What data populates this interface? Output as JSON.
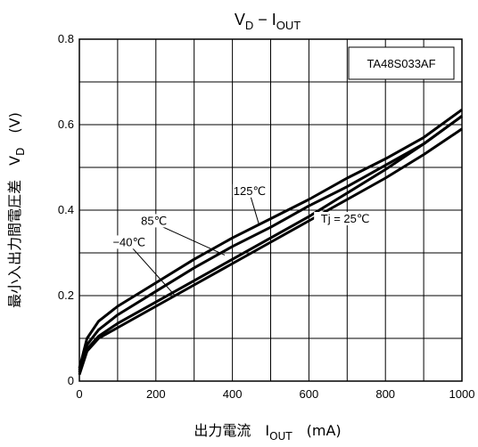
{
  "chart_data": {
    "type": "line",
    "title": "V_D − I_OUT",
    "title_main": "V",
    "title_sub": "D",
    "title_sep": " − I",
    "title_sub2": "OUT",
    "device_label": "TA48S033AF",
    "xlabel_main": "出力電流　I",
    "xlabel_sub": "OUT",
    "xlabel_unit": "(mA)",
    "ylabel_main": "最小入出力間電圧差　V",
    "ylabel_sub": "D",
    "ylabel_unit": "(V)",
    "xlim": [
      0,
      1000
    ],
    "ylim": [
      0,
      0.8
    ],
    "xticks": [
      "0",
      "200",
      "400",
      "600",
      "800",
      "1000"
    ],
    "yticks": [
      "0",
      "0.2",
      "0.4",
      "0.6",
      "0.8"
    ],
    "grid": true,
    "series": [
      {
        "name": "125℃",
        "x": [
          0,
          20,
          50,
          100,
          200,
          300,
          400,
          500,
          600,
          700,
          800,
          900,
          1000
        ],
        "y": [
          0.03,
          0.1,
          0.14,
          0.175,
          0.23,
          0.285,
          0.335,
          0.38,
          0.425,
          0.475,
          0.52,
          0.57,
          0.635
        ]
      },
      {
        "name": "85℃",
        "x": [
          0,
          20,
          50,
          100,
          200,
          300,
          400,
          500,
          600,
          700,
          800,
          900,
          1000
        ],
        "y": [
          0.025,
          0.085,
          0.12,
          0.155,
          0.21,
          0.265,
          0.315,
          0.36,
          0.41,
          0.455,
          0.505,
          0.555,
          0.62
        ]
      },
      {
        "name": "Tj = 25℃",
        "x": [
          0,
          20,
          50,
          100,
          200,
          300,
          400,
          500,
          600,
          700,
          800,
          900,
          1000
        ],
        "y": [
          0.02,
          0.075,
          0.105,
          0.135,
          0.185,
          0.235,
          0.285,
          0.335,
          0.385,
          0.44,
          0.495,
          0.555,
          0.62
        ]
      },
      {
        "name": "−40℃",
        "x": [
          0,
          20,
          50,
          100,
          200,
          300,
          400,
          500,
          600,
          700,
          800,
          900,
          1000
        ],
        "y": [
          0.015,
          0.07,
          0.1,
          0.125,
          0.175,
          0.225,
          0.275,
          0.325,
          0.375,
          0.425,
          0.475,
          0.53,
          0.59
        ]
      }
    ],
    "annotations": [
      {
        "label": "125℃",
        "text_x": 445,
        "text_y": 0.44,
        "arrow_to_x": 470,
        "arrow_to_y": 0.365
      },
      {
        "label": "85℃",
        "text_x": 195,
        "text_y": 0.37,
        "arrow_to_x": 380,
        "arrow_to_y": 0.295
      },
      {
        "label": "Tj = 25℃",
        "text_x": 695,
        "text_y": 0.375,
        "arrow_to_x": 620,
        "arrow_to_y": 0.38
      },
      {
        "label": "−40℃",
        "text_x": 130,
        "text_y": 0.32,
        "arrow_to_x": 250,
        "arrow_to_y": 0.2
      }
    ]
  }
}
